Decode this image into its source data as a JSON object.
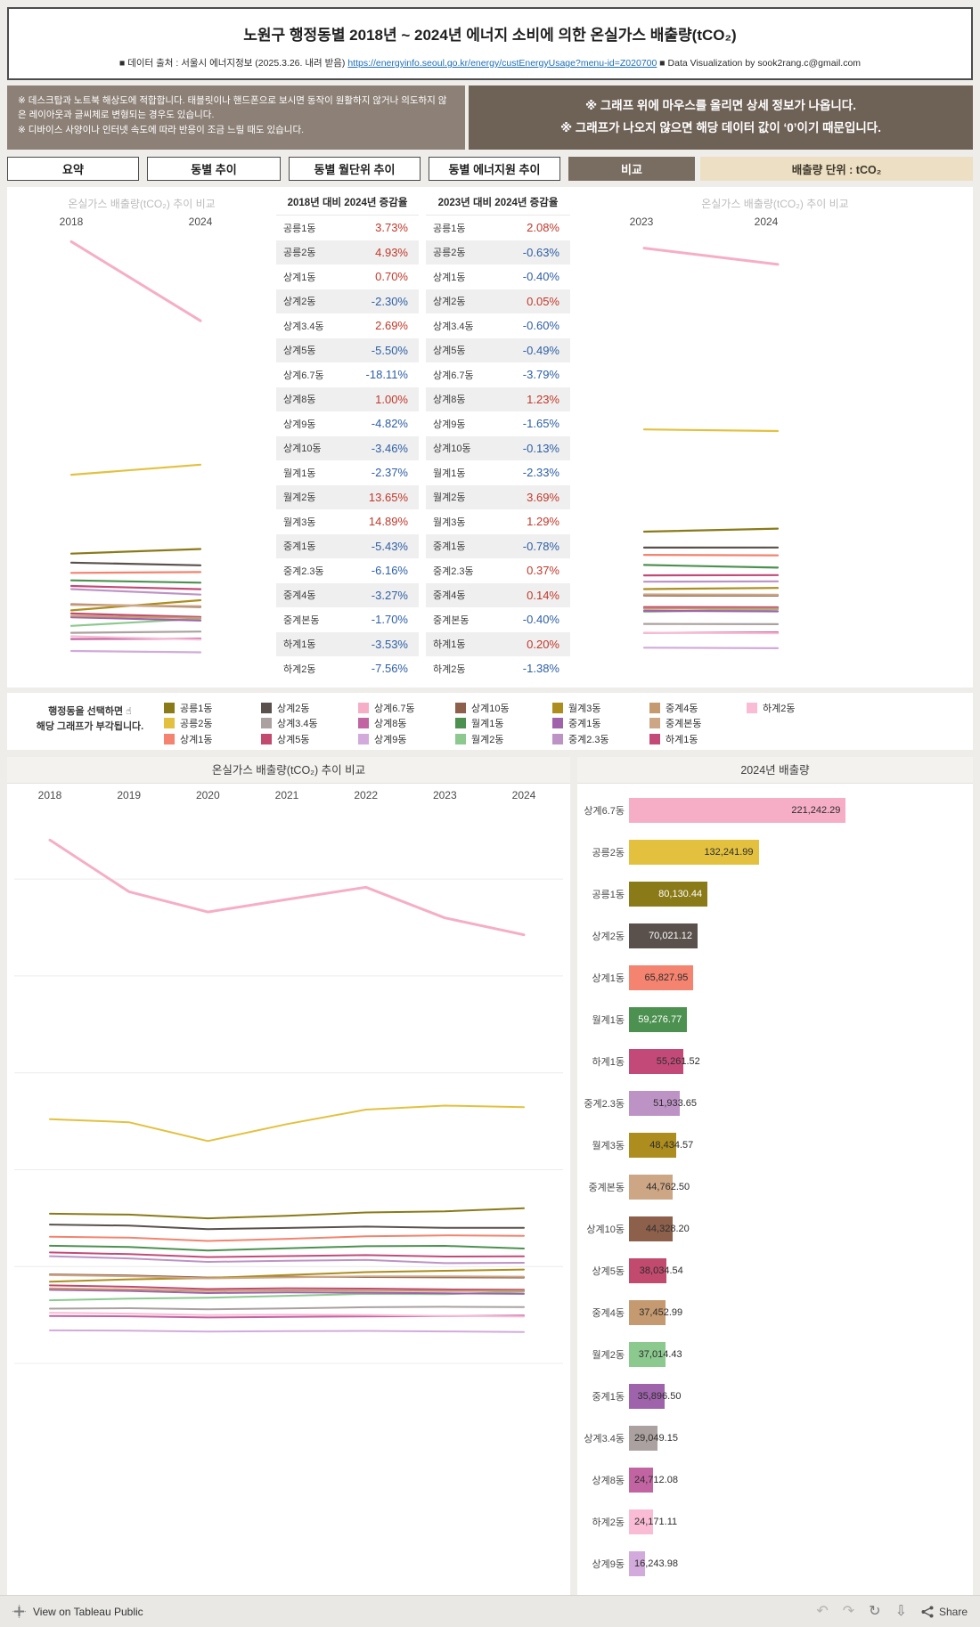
{
  "header": {
    "title": "노원구 행정동별 2018년 ~ 2024년 에너지 소비에 의한 온실가스 배출량(tCO₂)",
    "source_prefix": "■ 데이터 출처 : 서울시 에너지정보 (2025.3.26. 내려 받음)",
    "source_link": "https://energyinfo.seoul.go.kr/energy/custEnergyUsage?menu-id=Z020700",
    "credit": "■ Data Visualization by sook2rang.c@gmail.com"
  },
  "notices": {
    "left_lines": [
      "※ 데스크탑과 노트북 해상도에 적합합니다. 태블릿이나 핸드폰으로 보시면 동작이 원활하지 않거나 의도하지 않은 레이아웃과 글씨체로 변형되는 경우도 있습니다.",
      "※ 디바이스 사양이나 인터넷 속도에 따라 반응이 조금 느릴 때도 있습니다."
    ],
    "right_lines": [
      "※ 그래프 위에 마우스를 올리면 상세 정보가 나옵니다.",
      "※ 그래프가 나오지 않으면 해당 데이터 값이 ‘0’이기 때문입니다."
    ]
  },
  "tabs": [
    {
      "label": "요약",
      "active": false
    },
    {
      "label": "동별 추이",
      "active": false
    },
    {
      "label": "동별 월단위 추이",
      "active": false
    },
    {
      "label": "동별 에너지원 추이",
      "active": false
    },
    {
      "label": "비교",
      "active": true
    }
  ],
  "unit_label": "배출량 단위 : tCO₂",
  "legend": {
    "hint_line1": "행정동을 선택하면 ☝",
    "hint_line2": "해당 그래프가 부각됩니다.",
    "order": [
      "공릉1동",
      "공릉2동",
      "상계1동",
      "상계2동",
      "상계3.4동",
      "상계5동",
      "상계6.7동",
      "상계8동",
      "상계9동",
      "상계10동",
      "월계1동",
      "월계2동",
      "월계3동",
      "중계1동",
      "중계2.3동",
      "중계4동",
      "중계본동",
      "하계1동",
      "하계2동"
    ]
  },
  "colors": {
    "공릉1동": "#8a7a18",
    "공릉2동": "#e3c13f",
    "상계1동": "#f4836f",
    "상계2동": "#5a514c",
    "상계3.4동": "#aaa1a0",
    "상계5동": "#c14a6e",
    "상계6.7동": "#f6aec6",
    "상계8동": "#c263a2",
    "상계9동": "#d2aadb",
    "상계10동": "#8d604c",
    "월계1동": "#4c9150",
    "월계2동": "#8cc98f",
    "월계3동": "#ad8d1e",
    "중계1동": "#9f63ac",
    "중계2.3동": "#bd93c6",
    "중계4동": "#c59a70",
    "중계본동": "#cda685",
    "하계1동": "#c34a78",
    "하계2동": "#f9bcd4"
  },
  "chart_data": [
    {
      "id": "trend",
      "type": "line",
      "title": "온실가스 배출량(tCO₂) 추이 비교",
      "x": [
        "2018",
        "2019",
        "2020",
        "2021",
        "2022",
        "2023",
        "2024"
      ],
      "ylim": [
        0,
        285000
      ],
      "grid": true,
      "legend_position": "none",
      "series": [
        {
          "name": "공릉1동",
          "values": [
            77249,
            76800,
            74900,
            76200,
            77900,
            78497,
            80130
          ]
        },
        {
          "name": "공릉2동",
          "values": [
            126029,
            124500,
            114800,
            123500,
            131000,
            133080,
            132242
          ]
        },
        {
          "name": "상계1동",
          "values": [
            65370,
            64900,
            63200,
            64300,
            65600,
            66092,
            65828
          ]
        },
        {
          "name": "상계2동",
          "values": [
            71670,
            71100,
            69300,
            69900,
            70600,
            69986,
            70021
          ]
        },
        {
          "name": "상계3.4동",
          "values": [
            28288,
            28500,
            27900,
            28400,
            29000,
            29224,
            29049
          ]
        },
        {
          "name": "상계5동",
          "values": [
            40248,
            39600,
            38400,
            38800,
            38600,
            38222,
            38035
          ]
        },
        {
          "name": "상계6.7동",
          "values": [
            270170,
            243500,
            233000,
            239500,
            245800,
            229958,
            221242
          ]
        },
        {
          "name": "상계8동",
          "values": [
            24467,
            24300,
            23700,
            24000,
            24250,
            24412,
            24712
          ]
        },
        {
          "name": "상계9동",
          "values": [
            17067,
            16900,
            16400,
            16650,
            16800,
            16517,
            16244
          ]
        },
        {
          "name": "상계10동",
          "values": [
            45917,
            45400,
            44300,
            44700,
            44600,
            44386,
            44328
          ]
        },
        {
          "name": "월계1동",
          "values": [
            60716,
            60100,
            58300,
            59400,
            60500,
            60691,
            59277
          ]
        },
        {
          "name": "월계2동",
          "values": [
            32569,
            33400,
            33900,
            34900,
            35900,
            35697,
            37014
          ]
        },
        {
          "name": "월계3동",
          "values": [
            42157,
            43400,
            44100,
            45600,
            47100,
            47818,
            48435
          ]
        },
        {
          "name": "중계1동",
          "values": [
            37958,
            37400,
            36300,
            36700,
            36500,
            36179,
            35897
          ]
        },
        {
          "name": "중계2.3동",
          "values": [
            55343,
            54200,
            52400,
            53000,
            53400,
            51742,
            51934
          ]
        },
        {
          "name": "중계4동",
          "values": [
            38719,
            38200,
            37400,
            37700,
            37600,
            37401,
            37453
          ]
        },
        {
          "name": "중계본동",
          "values": [
            45537,
            45000,
            43900,
            44400,
            44900,
            44942,
            44763
          ]
        },
        {
          "name": "하계1동",
          "values": [
            57284,
            56400,
            54900,
            55400,
            55900,
            55151,
            55262
          ]
        },
        {
          "name": "하계2동",
          "values": [
            26148,
            25700,
            24900,
            25200,
            25000,
            24509,
            24171
          ]
        }
      ]
    },
    {
      "id": "slope-2018",
      "type": "line",
      "title": "온실가스 배출량(tCO₂) 추이 비교",
      "years": [
        "2018",
        "2024"
      ],
      "ylim": [
        0,
        272000
      ],
      "value_indices": [
        0,
        6
      ]
    },
    {
      "id": "slope-2023",
      "type": "line",
      "title": "온실가스 배출량(tCO₂) 추이 비교",
      "years": [
        "2023",
        "2024"
      ],
      "ylim": [
        0,
        235000
      ],
      "value_indices": [
        5,
        6
      ]
    },
    {
      "id": "table-2018",
      "type": "table",
      "title": "2018년 대비 2024년 증감율",
      "rows": [
        [
          "공릉1동",
          "3.73%"
        ],
        [
          "공릉2동",
          "4.93%"
        ],
        [
          "상계1동",
          "0.70%"
        ],
        [
          "상계2동",
          "-2.30%"
        ],
        [
          "상계3.4동",
          "2.69%"
        ],
        [
          "상계5동",
          "-5.50%"
        ],
        [
          "상계6.7동",
          "-18.11%"
        ],
        [
          "상계8동",
          "1.00%"
        ],
        [
          "상계9동",
          "-4.82%"
        ],
        [
          "상계10동",
          "-3.46%"
        ],
        [
          "월계1동",
          "-2.37%"
        ],
        [
          "월계2동",
          "13.65%"
        ],
        [
          "월계3동",
          "14.89%"
        ],
        [
          "중계1동",
          "-5.43%"
        ],
        [
          "중계2.3동",
          "-6.16%"
        ],
        [
          "중계4동",
          "-3.27%"
        ],
        [
          "중계본동",
          "-1.70%"
        ],
        [
          "하계1동",
          "-3.53%"
        ],
        [
          "하계2동",
          "-7.56%"
        ]
      ]
    },
    {
      "id": "table-2023",
      "type": "table",
      "title": "2023년 대비 2024년 증감율",
      "rows": [
        [
          "공릉1동",
          "2.08%"
        ],
        [
          "공릉2동",
          "-0.63%"
        ],
        [
          "상계1동",
          "-0.40%"
        ],
        [
          "상계2동",
          "0.05%"
        ],
        [
          "상계3.4동",
          "-0.60%"
        ],
        [
          "상계5동",
          "-0.49%"
        ],
        [
          "상계6.7동",
          "-3.79%"
        ],
        [
          "상계8동",
          "1.23%"
        ],
        [
          "상계9동",
          "-1.65%"
        ],
        [
          "상계10동",
          "-0.13%"
        ],
        [
          "월계1동",
          "-2.33%"
        ],
        [
          "월계2동",
          "3.69%"
        ],
        [
          "월계3동",
          "1.29%"
        ],
        [
          "중계1동",
          "-0.78%"
        ],
        [
          "중계2.3동",
          "0.37%"
        ],
        [
          "중계4동",
          "0.14%"
        ],
        [
          "중계본동",
          "-0.40%"
        ],
        [
          "하계1동",
          "0.20%"
        ],
        [
          "하계2동",
          "-1.38%"
        ]
      ]
    },
    {
      "id": "bars-2024",
      "type": "bar",
      "title": "2024년 배출량",
      "categories": [
        "상계6.7동",
        "공릉2동",
        "공릉1동",
        "상계2동",
        "상계1동",
        "월계1동",
        "하계1동",
        "중계2.3동",
        "월계3동",
        "중계본동",
        "상계10동",
        "상계5동",
        "중계4동",
        "월계2동",
        "중계1동",
        "상계3.4동",
        "상계8동",
        "하계2동",
        "상계9동"
      ],
      "values": [
        221242.29,
        132241.99,
        80130.44,
        70021.12,
        65827.95,
        59276.77,
        55261.52,
        51933.65,
        48434.57,
        44762.5,
        44328.2,
        38034.54,
        37452.99,
        37014.43,
        35896.5,
        29049.15,
        24712.08,
        24171.11,
        16243.98
      ],
      "labels": [
        "221,242.29",
        "132,241.99",
        "80,130.44",
        "70,021.12",
        "65,827.95",
        "59,276.77",
        "55,261.52",
        "51,933.65",
        "48,434.57",
        "44,762.50",
        "44,328.20",
        "38,034.54",
        "37,452.99",
        "37,014.43",
        "35,896.50",
        "29,049.15",
        "24,712.08",
        "24,171.11",
        "16,243.98"
      ]
    }
  ],
  "footer": {
    "view_label": "View on Tableau Public",
    "share_label": "Share"
  }
}
